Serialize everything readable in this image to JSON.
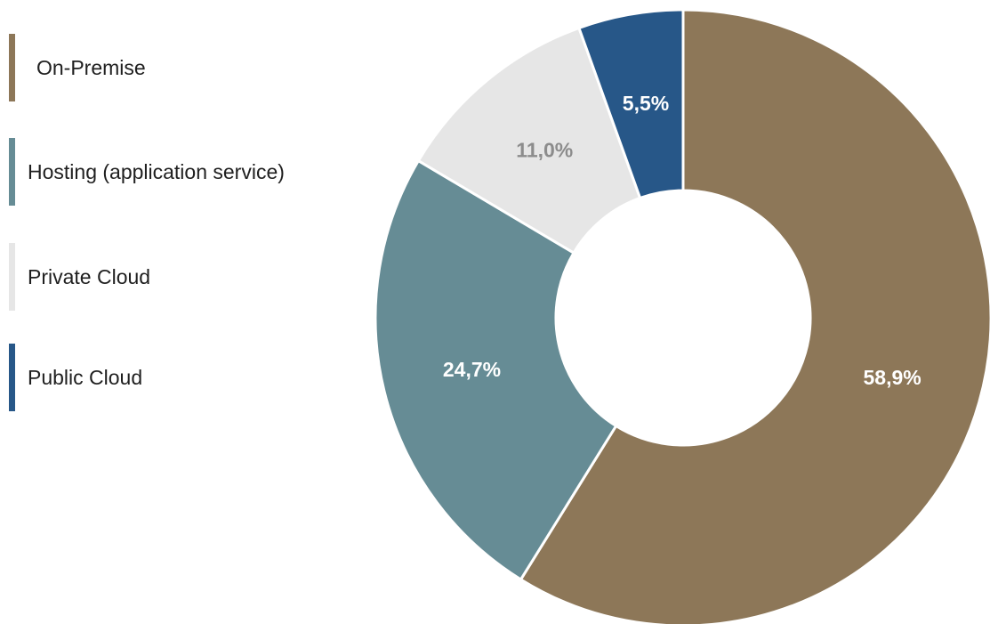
{
  "chart_data": {
    "type": "pie",
    "variant": "donut",
    "legend_position": "left",
    "categories": [
      "On-Premise",
      "Hosting (application service)",
      "Private Cloud",
      "Public Cloud"
    ],
    "values": [
      58.9,
      24.7,
      11.0,
      5.5
    ],
    "data_labels": [
      "58,9%",
      "24,7%",
      "11,0%",
      "5,5%"
    ],
    "colors": [
      "#8d7758",
      "#668c95",
      "#e6e6e6",
      "#275788"
    ],
    "label_colors": [
      "#ffffff",
      "#ffffff",
      "#8c8c8c",
      "#ffffff"
    ]
  }
}
